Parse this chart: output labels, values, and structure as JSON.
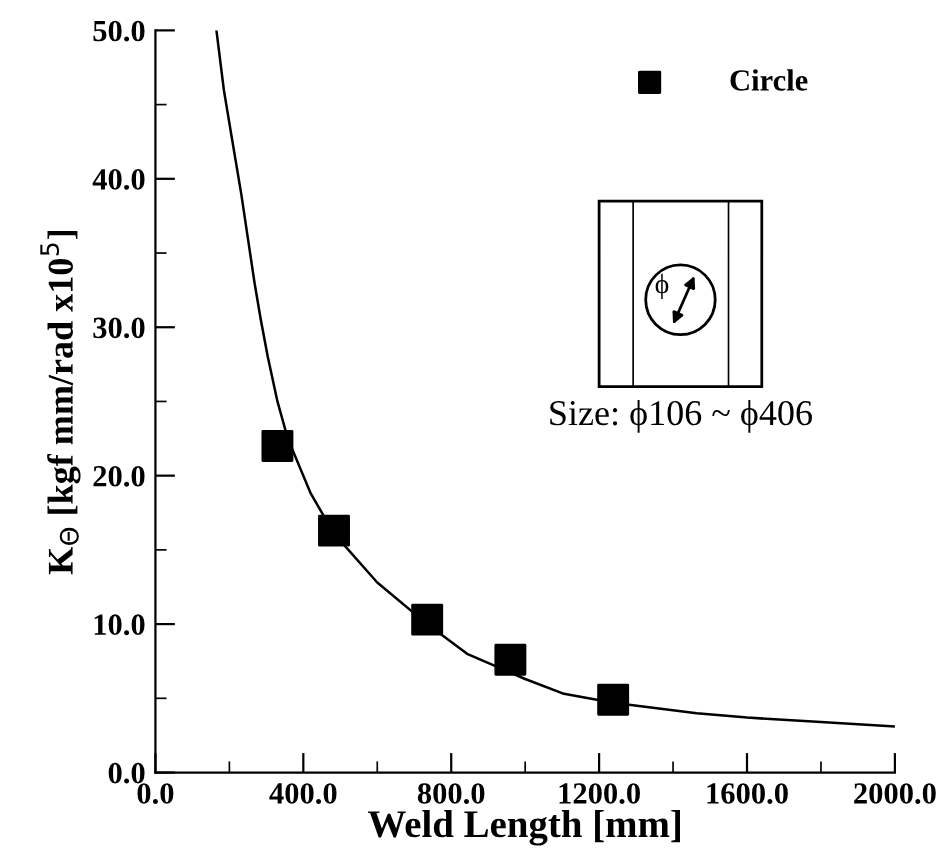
{
  "chart_data": {
    "type": "scatter",
    "xlabel": "Weld Length [mm]",
    "ylabel": "K$_{Θ}$ [kgf mm/rad x10$^{5}$]",
    "xlim": [
      0,
      2000
    ],
    "ylim": [
      0,
      50
    ],
    "xticks": [
      {
        "value": 0,
        "label": "0.0"
      },
      {
        "value": 400,
        "label": "400.0"
      },
      {
        "value": 800,
        "label": "800.0"
      },
      {
        "value": 1200,
        "label": "1200.0"
      },
      {
        "value": 1600,
        "label": "1600.0"
      },
      {
        "value": 2000,
        "label": "2000.0"
      }
    ],
    "yticks": [
      {
        "value": 0,
        "label": "0.0"
      },
      {
        "value": 10,
        "label": "10.0"
      },
      {
        "value": 20,
        "label": "20.0"
      },
      {
        "value": 30,
        "label": "30.0"
      },
      {
        "value": 40,
        "label": "40.0"
      },
      {
        "value": 50,
        "label": "50.0"
      }
    ],
    "grid": false,
    "legend": "top right",
    "series": [
      {
        "name": "Circle",
        "marker": "square",
        "color": "#000000",
        "x": [
          330,
          483,
          735,
          960,
          1238
        ],
        "values": [
          22.0,
          16.3,
          10.3,
          7.6,
          4.9
        ]
      },
      {
        "type": "line",
        "color": "#000000",
        "line_style": "solid",
        "x": [
          165,
          185,
          205,
          232,
          250,
          268,
          285,
          304,
          330,
          358,
          420,
          483,
          600,
          735,
          843,
          1000,
          1105,
          1238,
          1464,
          1600,
          1800,
          2000
        ],
        "values": [
          50,
          46,
          43,
          39,
          36,
          33,
          30.5,
          28,
          25,
          22.5,
          18.8,
          16.1,
          12.8,
          10.0,
          8.0,
          6.3,
          5.3,
          4.7,
          4.0,
          3.7,
          3.4,
          3.1
        ]
      }
    ],
    "annotations": [
      "Size: ϕ106 ~ ϕ406",
      "ϕ"
    ]
  }
}
